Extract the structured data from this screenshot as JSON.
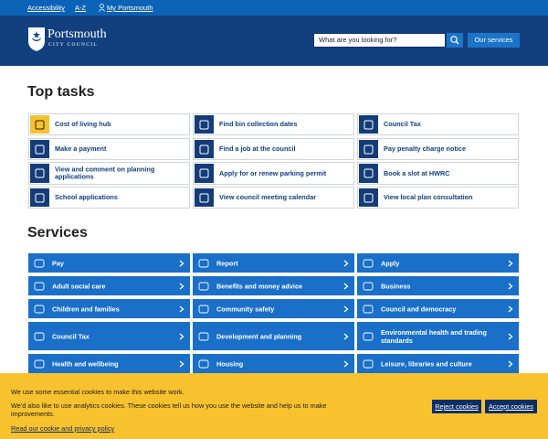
{
  "top_links": [
    "Accessibility",
    "A-Z",
    "My Portsmouth"
  ],
  "header": {
    "logo_title": "Portsmouth",
    "logo_subtitle": "CITY COUNCIL",
    "search_placeholder": "What are you looking for?",
    "services_button": "Our services"
  },
  "top_tasks": {
    "heading": "Top tasks",
    "items": [
      "Cost of living hub",
      "Find bin collection dates",
      "Council Tax",
      "Make a payment",
      "Find a job at the council",
      "Pay penalty charge notice",
      "View and comment on planning applications",
      "Apply for or renew parking permit",
      "Book a slot at HWRC",
      "School applications",
      "View council meeting calendar",
      "View local plan consultation"
    ]
  },
  "services": {
    "heading": "Services",
    "items": [
      "Pay",
      "Report",
      "Apply",
      "Adult social care",
      "Benefits and money advice",
      "Business",
      "Children and families",
      "Community safety",
      "Council and democracy",
      "Council Tax",
      "Development and planning",
      "Environmental health and trading standards",
      "Health and wellbeing",
      "Housing",
      "Leisure, libraries and culture"
    ]
  },
  "cookie_banner": {
    "line1": "We use some essential cookies to make this website work.",
    "line2": "We'd also like to use analytics cookies. These cookies tell us how you use the website and help us to make improvements.",
    "policy_link": "Read our cookie and privacy policy",
    "reject": "Reject cookies",
    "accept": "Accept cookies"
  }
}
